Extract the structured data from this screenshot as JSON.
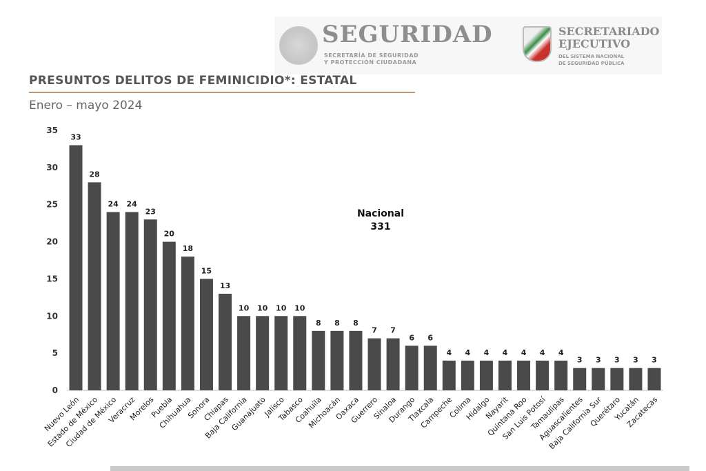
{
  "header": {
    "seguridad_title": "SEGURIDAD",
    "seguridad_sub1": "SECRETARÍA DE SEGURIDAD",
    "seguridad_sub2": "Y PROTECCIÓN CIUDADANA",
    "se_title1": "SECRETARIADO",
    "se_title2": "EJECUTIVO",
    "se_sub1": "DEL SISTEMA NACIONAL",
    "se_sub2": "DE SEGURIDAD PÚBLICA"
  },
  "chart_data": {
    "type": "bar",
    "title": "PRESUNTOS DELITOS DE FEMINICIDIO*: ESTATAL",
    "subtitle": "Enero – mayo 2024",
    "annotation": {
      "label": "Nacional",
      "value": "331"
    },
    "categories": [
      "Nuevo León",
      "Estado de México",
      "Ciudad de México",
      "Veracruz",
      "Morelos",
      "Puebla",
      "Chihuahua",
      "Sonora",
      "Chiapas",
      "Baja California",
      "Guanajuato",
      "Jalisco",
      "Tabasco",
      "Coahuila",
      "Michoacán",
      "Oaxaca",
      "Guerrero",
      "Sinaloa",
      "Durango",
      "Tlaxcala",
      "Campeche",
      "Colima",
      "Hidalgo",
      "Nayarit",
      "Quintana Roo",
      "San Luis Potosí",
      "Tamaulipas",
      "Aguascalientes",
      "Baja California Sur",
      "Querétaro",
      "Yucatán",
      "Zacatecas"
    ],
    "values": [
      33,
      28,
      24,
      24,
      23,
      20,
      18,
      15,
      13,
      10,
      10,
      10,
      10,
      8,
      8,
      8,
      7,
      7,
      6,
      6,
      4,
      4,
      4,
      4,
      4,
      4,
      4,
      3,
      3,
      3,
      3,
      3
    ],
    "yticks": [
      0,
      5,
      10,
      15,
      20,
      25,
      30,
      35
    ],
    "ylim": [
      0,
      35
    ],
    "grid": false,
    "bar_color": "#4a4a4a"
  }
}
